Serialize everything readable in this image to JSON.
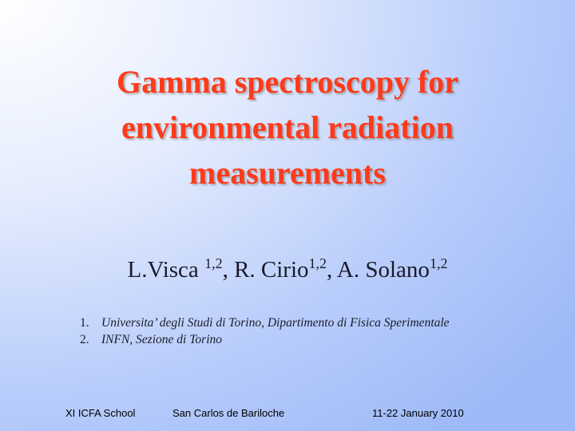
{
  "slide": {
    "title": "Gamma spectroscopy for environmental radiation measurements",
    "authors": [
      {
        "text": "L.Visca ",
        "sup": "1,2"
      },
      {
        "text": ", R. Cirio",
        "sup": "1,2"
      },
      {
        "text": ", A. Solano",
        "sup": "1,2"
      }
    ],
    "affiliations": [
      {
        "number": "1.",
        "text": "Universita’ degli Studi di Torino, Dipartimento di Fisica Sperimentale"
      },
      {
        "number": "2.",
        "text": "INFN, Sezione di Torino"
      }
    ],
    "footer": {
      "left": "XI ICFA School",
      "center": "San Carlos de Bariloche",
      "right": "11-22 January 2010"
    }
  }
}
